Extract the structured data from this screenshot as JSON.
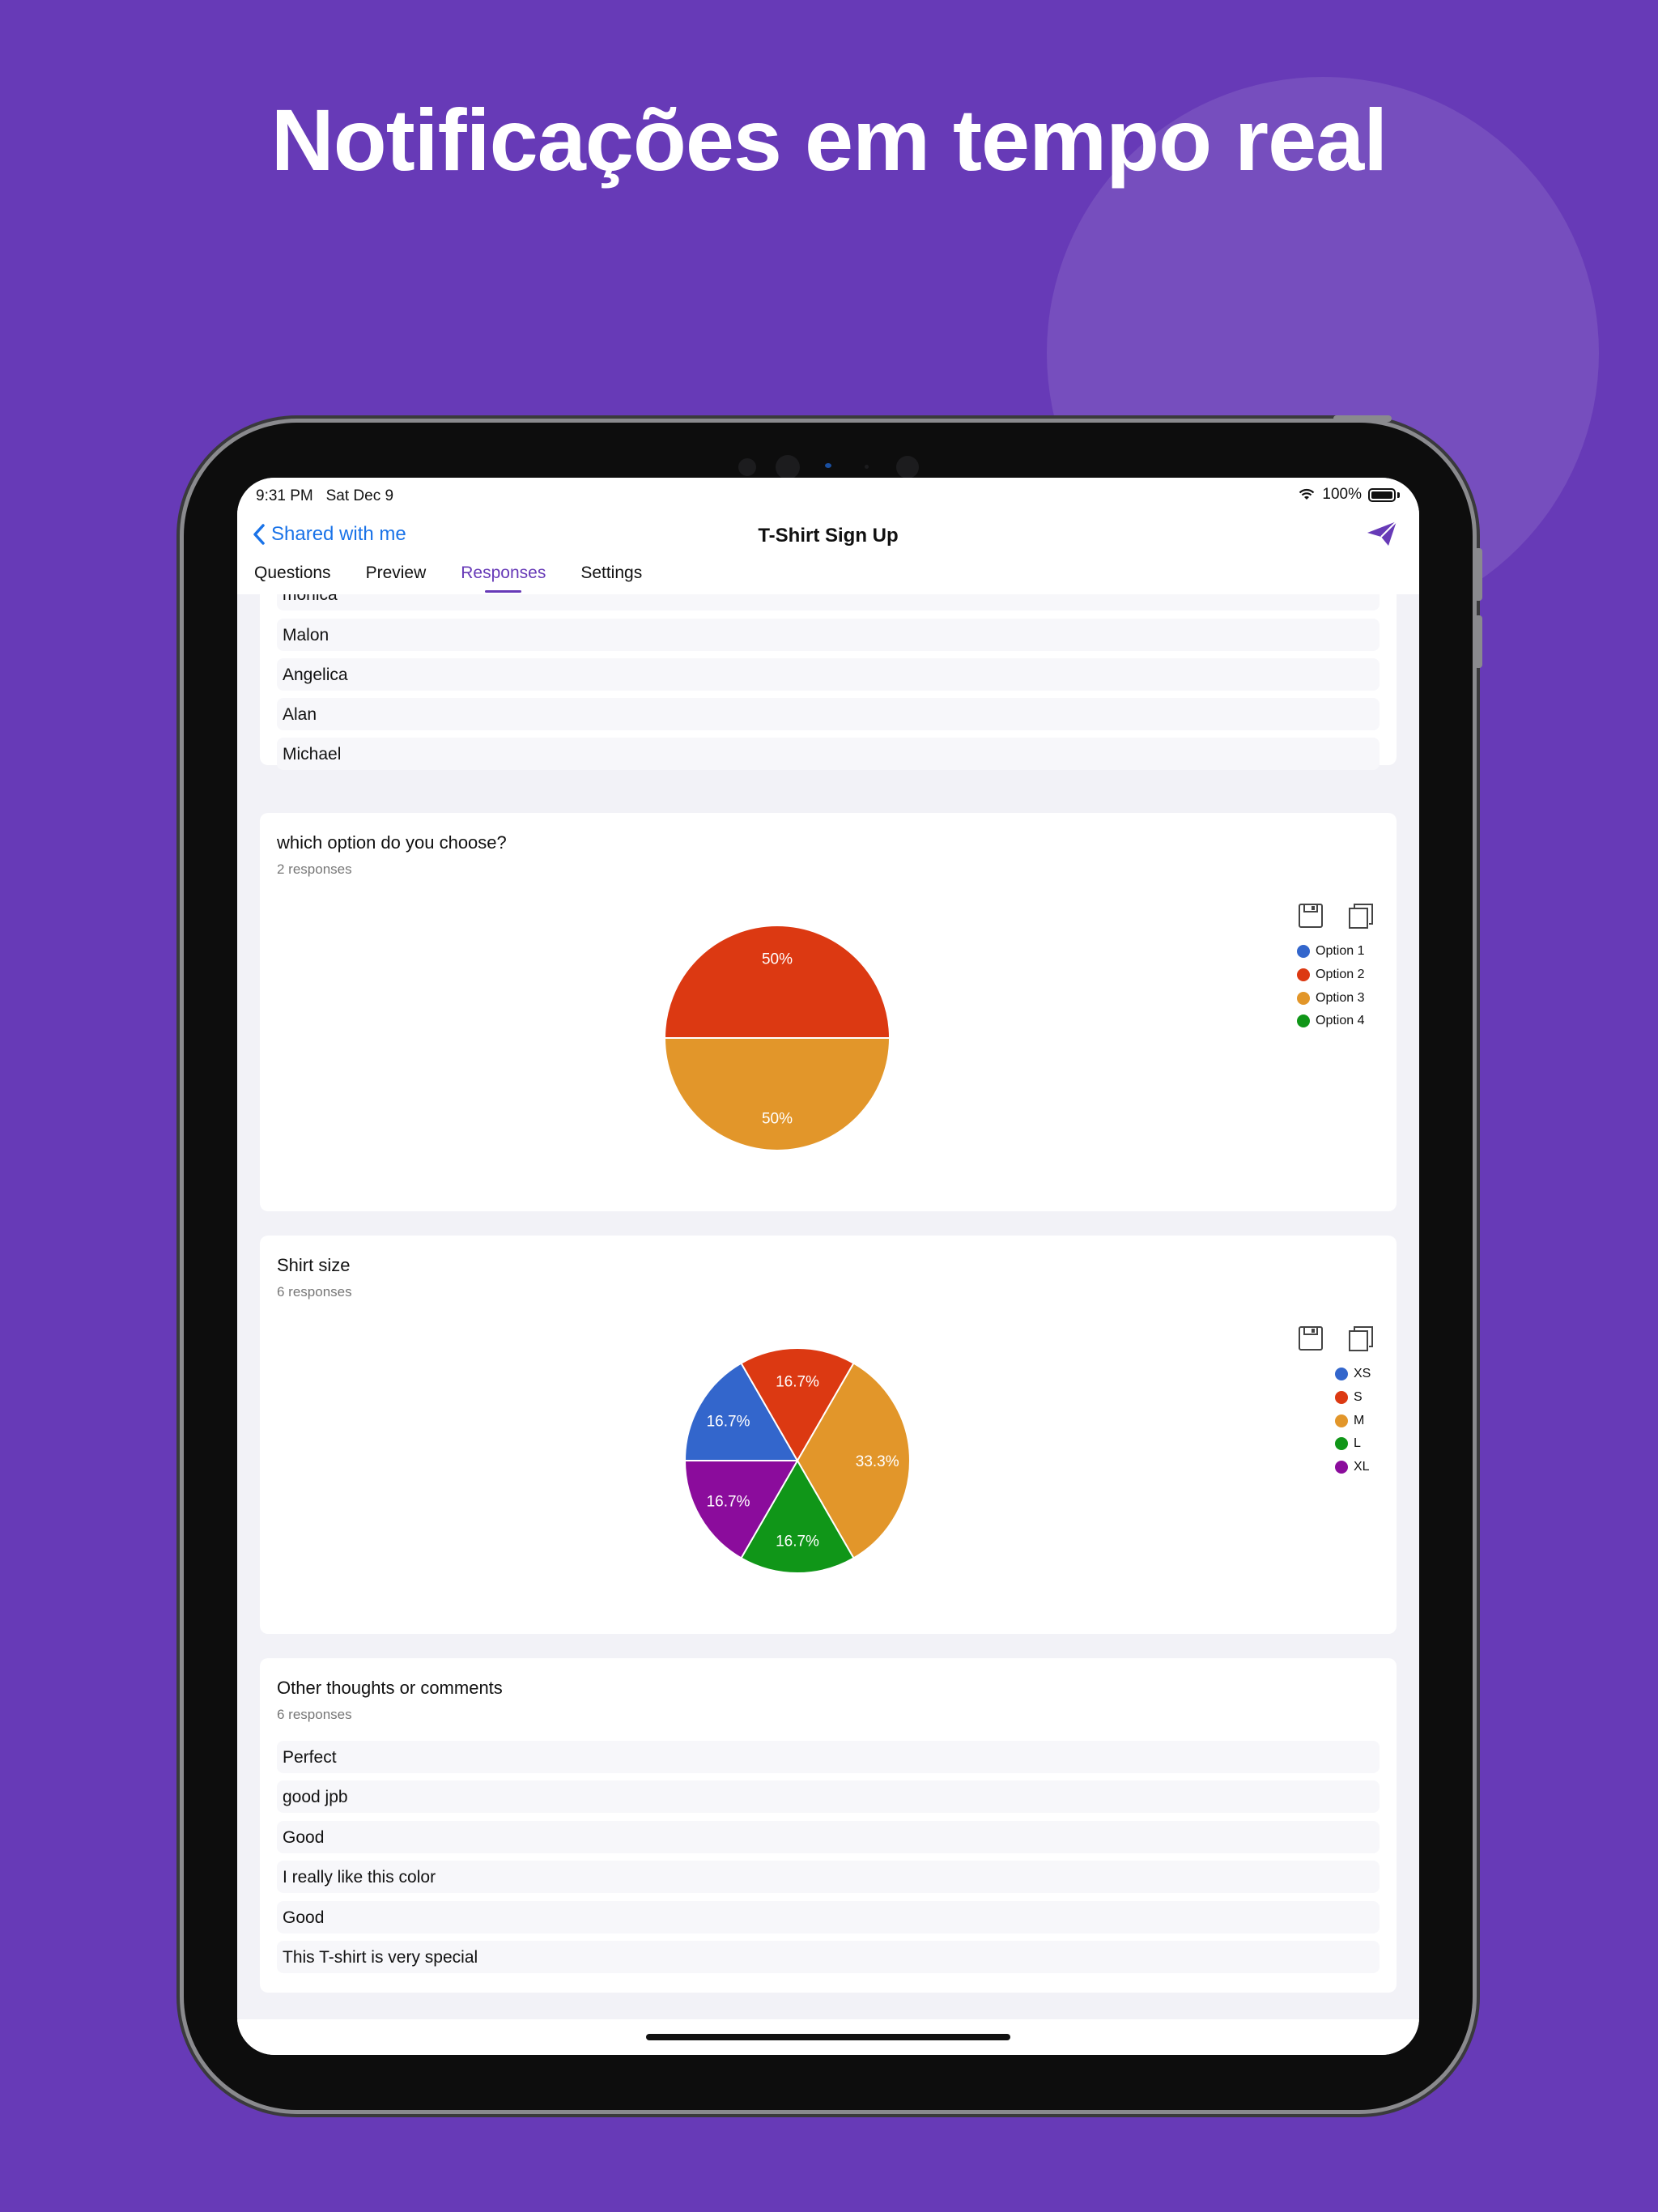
{
  "headline": "Notificações em tempo real",
  "status": {
    "time": "9:31 PM",
    "date": "Sat Dec 9",
    "battery": "100%"
  },
  "nav": {
    "back_label": "Shared with me",
    "title": "T-Shirt Sign Up"
  },
  "tabs": [
    {
      "label": "Questions",
      "active": false
    },
    {
      "label": "Preview",
      "active": false
    },
    {
      "label": "Responses",
      "active": true
    },
    {
      "label": "Settings",
      "active": false
    }
  ],
  "names_card": {
    "rows": [
      "monica",
      "Malon",
      "Angelica",
      "Alan",
      "Michael"
    ]
  },
  "option_card": {
    "title": "which option do you choose?",
    "count": "2 responses"
  },
  "size_card": {
    "title": "Shirt size",
    "count": "6 responses"
  },
  "comments_card": {
    "title": "Other thoughts or comments",
    "count": "6 responses",
    "rows": [
      "Perfect",
      "good jpb",
      "Good",
      "I really like this color",
      "Good",
      "This T-shirt is very special"
    ]
  },
  "colors": {
    "accent": "#673ab7",
    "link": "#1a73e8",
    "blue": "#3366cc",
    "red": "#dc3912",
    "orange": "#e2962a",
    "green": "#109618",
    "purple": "#8b0c9c"
  },
  "icons": [
    "chevron-left-icon",
    "send-icon",
    "save-icon",
    "copy-icon",
    "wifi-icon",
    "battery-icon"
  ],
  "chart_data": [
    {
      "type": "pie",
      "title": "which option do you choose?",
      "categories": [
        "Option 1",
        "Option 2",
        "Option 3",
        "Option 4"
      ],
      "values": [
        0,
        1,
        1,
        0
      ],
      "colors": [
        "#3366cc",
        "#dc3912",
        "#e2962a",
        "#109618"
      ],
      "labels": [
        "",
        "50%",
        "50%",
        ""
      ],
      "start_angle": 180,
      "direction": -1,
      "legend": "right"
    },
    {
      "type": "pie",
      "title": "Shirt size",
      "categories": [
        "XS",
        "S",
        "M",
        "L",
        "XL"
      ],
      "values": [
        1,
        1,
        2,
        1,
        1
      ],
      "colors": [
        "#3366cc",
        "#dc3912",
        "#e2962a",
        "#109618",
        "#8b0c9c"
      ],
      "labels": [
        "16.7%",
        "16.7%",
        "33.3%",
        "16.7%",
        "16.7%"
      ],
      "start_angle": 180,
      "direction": -1,
      "legend": "right"
    }
  ]
}
